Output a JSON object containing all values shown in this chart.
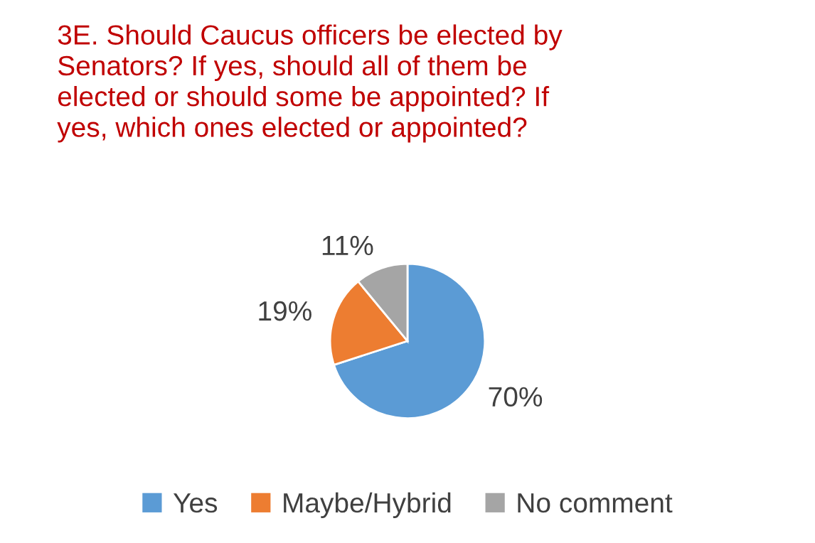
{
  "chart_data": {
    "type": "pie",
    "title": "3E. Should Caucus officers be elected by\nSenators? If yes, should all of them be\nelected or should some be appointed? If\nyes, which ones elected or appointed?",
    "categories": [
      "Yes",
      "Maybe/Hybrid",
      "No comment"
    ],
    "values": [
      70,
      19,
      11
    ],
    "colors": [
      "#5b9bd5",
      "#ed7d31",
      "#a5a5a5"
    ],
    "value_labels": [
      "70%",
      "19%",
      "11%"
    ],
    "legend": "bottom"
  }
}
